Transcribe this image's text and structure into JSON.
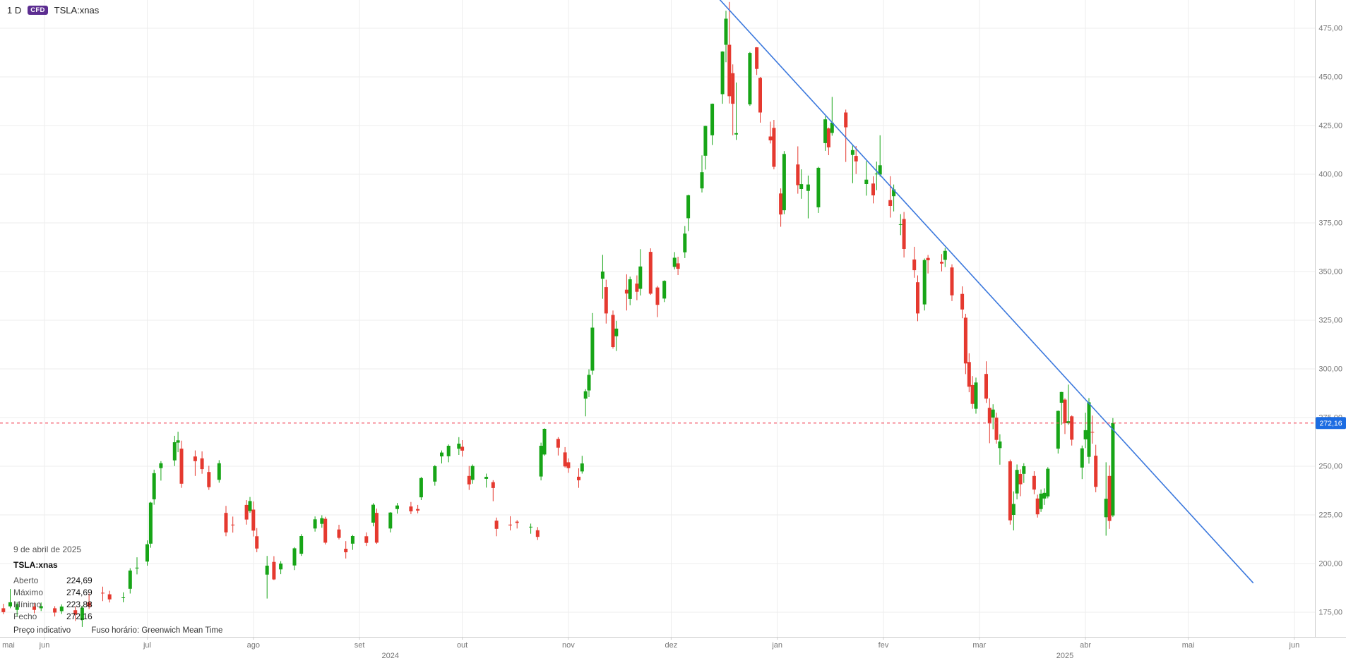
{
  "header": {
    "timeframe": "1 D",
    "instrument_badge": "CFD",
    "symbol": "TSLA:xnas"
  },
  "tooltip": {
    "date": "9 de abril de 2025",
    "symbol": "TSLA:xnas",
    "rows": [
      {
        "label": "Aberto",
        "value": "224,69"
      },
      {
        "label": "Máximo",
        "value": "274,69"
      },
      {
        "label": "Mínimo",
        "value": "223,88"
      },
      {
        "label": "Fecho",
        "value": "272,16"
      }
    ]
  },
  "footer": {
    "price_note": "Preço indicativo",
    "timezone": "Fuso horário: Greenwich Mean Time"
  },
  "colors": {
    "up": "#17a517",
    "down": "#e5392f",
    "trendline": "#3b78dd",
    "current_price_line": "#f4465a",
    "price_tag_bg": "#1c6ce2",
    "price_tag_text": "#ffffff",
    "badge_bg": "#5c2d91",
    "grid": "#ededed",
    "axis_line": "#cfcfcf",
    "axis_text": "#767676"
  },
  "chart_data": {
    "type": "candlestick",
    "symbol": "TSLA:xnas",
    "timeframe": "1 D",
    "y_axis": {
      "ticks": [
        475,
        450,
        425,
        400,
        375,
        350,
        325,
        300,
        275,
        250,
        225,
        200,
        175
      ],
      "top_price": 489.5,
      "bottom_price": 162.3,
      "decimal_separator": ","
    },
    "x_axis": {
      "start": "2024-05-19",
      "end": "2025-06-07",
      "months": [
        {
          "label": "mai",
          "date": "2024-05-01"
        },
        {
          "label": "jun",
          "date": "2024-06-01"
        },
        {
          "label": "jul",
          "date": "2024-07-01"
        },
        {
          "label": "ago",
          "date": "2024-08-01"
        },
        {
          "label": "set",
          "date": "2024-09-01"
        },
        {
          "label": "out",
          "date": "2024-10-01"
        },
        {
          "label": "nov",
          "date": "2024-11-01"
        },
        {
          "label": "dez",
          "date": "2024-12-01"
        },
        {
          "label": "jan",
          "date": "2025-01-01"
        },
        {
          "label": "fev",
          "date": "2025-02-01"
        },
        {
          "label": "mar",
          "date": "2025-03-01"
        },
        {
          "label": "abr",
          "date": "2025-04-01"
        },
        {
          "label": "mai",
          "date": "2025-05-01"
        },
        {
          "label": "jun",
          "date": "2025-06-01"
        }
      ],
      "years": [
        {
          "label": "2024",
          "date": "2024-09-10"
        },
        {
          "label": "2025",
          "date": "2025-03-26"
        }
      ]
    },
    "current_price": {
      "value": 272.16,
      "label": "272,16"
    },
    "trendline": {
      "from": {
        "date": "2024-12-14",
        "price": 492
      },
      "to": {
        "date": "2025-05-20",
        "price": 190
      }
    },
    "candles": [
      [
        "2024-05-20",
        177.0,
        179.3,
        174.0,
        175.0
      ],
      [
        "2024-05-22",
        178.0,
        186.9,
        177.0,
        180.1
      ],
      [
        "2024-05-24",
        176.2,
        180.3,
        172.9,
        179.2
      ],
      [
        "2024-05-29",
        178.0,
        179.6,
        174.4,
        176.2
      ],
      [
        "2024-05-31",
        177.0,
        180.0,
        175.6,
        178.1
      ],
      [
        "2024-06-04",
        177.0,
        178.1,
        172.8,
        174.8
      ],
      [
        "2024-06-06",
        175.5,
        179.0,
        174.1,
        177.9
      ],
      [
        "2024-06-10",
        176.0,
        178.0,
        170.5,
        173.8
      ],
      [
        "2024-06-12",
        171.0,
        178.3,
        167.4,
        177.3
      ],
      [
        "2024-06-14",
        180.0,
        184.6,
        176.6,
        178.0
      ],
      [
        "2024-06-18",
        185.0,
        188.1,
        180.7,
        184.9
      ],
      [
        "2024-06-20",
        184.2,
        186.0,
        180.0,
        181.6
      ],
      [
        "2024-06-24",
        182.5,
        185.2,
        180.1,
        182.6
      ],
      [
        "2024-06-26",
        187.0,
        197.6,
        184.6,
        196.4
      ],
      [
        "2024-06-28",
        197.5,
        203.2,
        194.4,
        197.9
      ],
      [
        "2024-07-01",
        201.0,
        211.9,
        198.9,
        209.9
      ],
      [
        "2024-07-02",
        210.2,
        231.7,
        208.1,
        231.3
      ],
      [
        "2024-07-03",
        233.0,
        248.2,
        230.2,
        246.4
      ],
      [
        "2024-07-05",
        249.0,
        252.6,
        242.6,
        251.5
      ],
      [
        "2024-07-09",
        253.0,
        265.6,
        250.1,
        262.3
      ],
      [
        "2024-07-10",
        262.1,
        267.7,
        257.2,
        263.3
      ],
      [
        "2024-07-11",
        259.0,
        263.1,
        238.9,
        241.0
      ],
      [
        "2024-07-15",
        255.0,
        258.1,
        245.0,
        252.6
      ],
      [
        "2024-07-17",
        254.0,
        257.6,
        246.1,
        248.5
      ],
      [
        "2024-07-19",
        247.0,
        250.2,
        237.8,
        239.2
      ],
      [
        "2024-07-22",
        243.0,
        253.1,
        241.5,
        251.5
      ],
      [
        "2024-07-24",
        226.0,
        229.6,
        214.0,
        216.0
      ],
      [
        "2024-07-26",
        220.0,
        224.1,
        215.9,
        219.8
      ],
      [
        "2024-07-30",
        230.1,
        232.6,
        220.0,
        222.6
      ],
      [
        "2024-07-31",
        227.0,
        234.2,
        226.0,
        232.1
      ],
      [
        "2024-08-01",
        227.7,
        231.9,
        213.9,
        216.9
      ],
      [
        "2024-08-02",
        214.0,
        218.2,
        205.8,
        207.7
      ],
      [
        "2024-08-05",
        194.3,
        203.9,
        182.0,
        198.9
      ],
      [
        "2024-08-07",
        200.8,
        203.8,
        191.5,
        191.8
      ],
      [
        "2024-08-09",
        197.0,
        201.2,
        194.5,
        200.0
      ],
      [
        "2024-08-13",
        199.0,
        208.4,
        196.6,
        207.8
      ],
      [
        "2024-08-15",
        205.0,
        215.1,
        203.9,
        214.1
      ],
      [
        "2024-08-19",
        218.0,
        224.2,
        216.4,
        222.7
      ],
      [
        "2024-08-21",
        220.4,
        224.8,
        218.4,
        223.3
      ],
      [
        "2024-08-22",
        223.0,
        224.0,
        209.8,
        210.7
      ],
      [
        "2024-08-26",
        217.5,
        219.9,
        212.4,
        213.2
      ],
      [
        "2024-08-28",
        207.6,
        211.5,
        202.6,
        205.8
      ],
      [
        "2024-08-30",
        210.2,
        214.7,
        207.0,
        214.1
      ],
      [
        "2024-09-03",
        214.0,
        216.0,
        209.0,
        210.6
      ],
      [
        "2024-09-05",
        221.0,
        231.0,
        219.1,
        230.2
      ],
      [
        "2024-09-06",
        226.0,
        228.2,
        210.1,
        210.7
      ],
      [
        "2024-09-10",
        218.0,
        226.4,
        216.0,
        226.2
      ],
      [
        "2024-09-12",
        228.0,
        231.1,
        225.6,
        229.8
      ],
      [
        "2024-09-16",
        229.3,
        231.6,
        225.4,
        226.8
      ],
      [
        "2024-09-18",
        228.0,
        230.1,
        225.8,
        227.2
      ],
      [
        "2024-09-19",
        234.0,
        244.5,
        232.6,
        243.9
      ],
      [
        "2024-09-23",
        242.1,
        250.6,
        240.0,
        250.0
      ],
      [
        "2024-09-25",
        255.0,
        258.1,
        251.4,
        257.0
      ],
      [
        "2024-09-27",
        255.1,
        261.2,
        252.0,
        260.5
      ],
      [
        "2024-09-30",
        259.0,
        264.9,
        255.8,
        261.6
      ],
      [
        "2024-10-01",
        260.0,
        263.4,
        254.9,
        258.0
      ],
      [
        "2024-10-03",
        245.0,
        250.1,
        237.8,
        240.7
      ],
      [
        "2024-10-04",
        243.0,
        250.9,
        241.0,
        250.1
      ],
      [
        "2024-10-08",
        243.5,
        246.2,
        239.0,
        244.5
      ],
      [
        "2024-10-10",
        241.8,
        242.8,
        232.0,
        238.8
      ],
      [
        "2024-10-11",
        222.0,
        223.6,
        214.0,
        217.8
      ],
      [
        "2024-10-15",
        220.0,
        224.3,
        217.0,
        219.6
      ],
      [
        "2024-10-17",
        221.5,
        222.3,
        218.0,
        220.9
      ],
      [
        "2024-10-21",
        218.9,
        220.5,
        215.3,
        218.9
      ],
      [
        "2024-10-23",
        217.1,
        218.7,
        212.1,
        213.7
      ],
      [
        "2024-10-24",
        244.7,
        262.1,
        242.7,
        260.5
      ],
      [
        "2024-10-25",
        256.0,
        269.5,
        255.3,
        269.2
      ],
      [
        "2024-10-29",
        264.0,
        264.9,
        255.5,
        259.5
      ],
      [
        "2024-10-31",
        257.1,
        259.8,
        249.3,
        249.9
      ],
      [
        "2024-11-01",
        252.0,
        254.0,
        246.6,
        249.0
      ],
      [
        "2024-11-04",
        244.6,
        248.9,
        238.9,
        242.8
      ],
      [
        "2024-11-05",
        247.3,
        255.3,
        246.2,
        251.4
      ],
      [
        "2024-11-06",
        284.7,
        289.6,
        275.6,
        288.5
      ],
      [
        "2024-11-07",
        288.9,
        299.8,
        285.5,
        296.9
      ],
      [
        "2024-11-08",
        299.1,
        328.7,
        297.0,
        321.2
      ],
      [
        "2024-11-11",
        346.3,
        358.6,
        336.0,
        350.0
      ],
      [
        "2024-11-12",
        342.0,
        345.8,
        323.3,
        328.5
      ],
      [
        "2024-11-14",
        327.7,
        330.0,
        310.4,
        311.2
      ],
      [
        "2024-11-15",
        316.8,
        324.7,
        309.2,
        320.7
      ],
      [
        "2024-11-18",
        340.7,
        348.6,
        330.0,
        338.7
      ],
      [
        "2024-11-19",
        335.9,
        347.4,
        332.7,
        346.0
      ],
      [
        "2024-11-21",
        343.8,
        348.0,
        335.3,
        339.6
      ],
      [
        "2024-11-22",
        341.1,
        361.5,
        337.7,
        352.6
      ],
      [
        "2024-11-25",
        360.1,
        361.9,
        338.0,
        338.6
      ],
      [
        "2024-11-27",
        341.8,
        342.6,
        326.6,
        332.9
      ],
      [
        "2024-11-29",
        336.1,
        345.5,
        334.3,
        345.2
      ],
      [
        "2024-12-02",
        352.4,
        360.0,
        351.1,
        357.1
      ],
      [
        "2024-12-03",
        354.2,
        357.6,
        348.2,
        351.4
      ],
      [
        "2024-12-05",
        359.9,
        373.4,
        356.9,
        369.5
      ],
      [
        "2024-12-06",
        377.4,
        389.5,
        370.8,
        389.2
      ],
      [
        "2024-12-10",
        392.7,
        409.7,
        390.6,
        401.0
      ],
      [
        "2024-12-11",
        409.5,
        424.9,
        402.4,
        424.8
      ],
      [
        "2024-12-13",
        420.0,
        436.3,
        415.0,
        436.2
      ],
      [
        "2024-12-16",
        441.1,
        463.2,
        436.2,
        463.0
      ],
      [
        "2024-12-17",
        466.5,
        484.0,
        457.5,
        479.9
      ],
      [
        "2024-12-18",
        466.5,
        488.5,
        436.3,
        440.1
      ],
      [
        "2024-12-19",
        451.9,
        456.4,
        420.0,
        436.2
      ],
      [
        "2024-12-20",
        420.4,
        447.1,
        417.6,
        421.1
      ],
      [
        "2024-12-24",
        435.9,
        462.8,
        435.1,
        462.3
      ],
      [
        "2024-12-26",
        465.2,
        465.3,
        451.0,
        454.1
      ],
      [
        "2024-12-27",
        449.5,
        450.0,
        426.5,
        431.7
      ],
      [
        "2024-12-30",
        419.4,
        427.0,
        415.8,
        417.4
      ],
      [
        "2024-12-31",
        423.8,
        427.9,
        402.5,
        403.8
      ],
      [
        "2025-01-02",
        390.1,
        392.7,
        373.0,
        379.3
      ],
      [
        "2025-01-03",
        381.5,
        411.9,
        379.5,
        410.4
      ],
      [
        "2025-01-07",
        405.0,
        414.3,
        390.0,
        394.4
      ],
      [
        "2025-01-08",
        392.4,
        402.5,
        387.4,
        394.9
      ],
      [
        "2025-01-10",
        391.4,
        399.3,
        377.3,
        394.7
      ],
      [
        "2025-01-13",
        383.0,
        403.8,
        380.1,
        403.3
      ],
      [
        "2025-01-15",
        416.0,
        429.7,
        412.0,
        428.2
      ],
      [
        "2025-01-16",
        423.5,
        424.0,
        409.8,
        413.8
      ],
      [
        "2025-01-17",
        421.2,
        439.7,
        419.8,
        426.5
      ],
      [
        "2025-01-21",
        431.7,
        433.2,
        406.3,
        424.1
      ],
      [
        "2025-01-23",
        409.9,
        415.3,
        395.4,
        412.4
      ],
      [
        "2025-01-24",
        409.4,
        414.5,
        400.1,
        406.6
      ],
      [
        "2025-01-27",
        394.9,
        406.7,
        389.0,
        397.2
      ],
      [
        "2025-01-29",
        395.2,
        398.9,
        385.0,
        389.1
      ],
      [
        "2025-01-30",
        400.0,
        406.5,
        391.8,
        400.3
      ],
      [
        "2025-01-31",
        399.8,
        420.0,
        398.8,
        404.6
      ],
      [
        "2025-02-03",
        386.7,
        399.0,
        377.7,
        383.7
      ],
      [
        "2025-02-04",
        388.7,
        394.7,
        380.9,
        392.2
      ],
      [
        "2025-02-06",
        374.3,
        379.5,
        368.7,
        374.3
      ],
      [
        "2025-02-07",
        377.0,
        380.6,
        357.2,
        361.6
      ],
      [
        "2025-02-10",
        356.2,
        362.7,
        346.8,
        350.7
      ],
      [
        "2025-02-11",
        344.5,
        348.0,
        324.5,
        328.5
      ],
      [
        "2025-02-13",
        333.1,
        356.7,
        330.0,
        355.9
      ],
      [
        "2025-02-14",
        357.0,
        358.5,
        349.0,
        355.8
      ],
      [
        "2025-02-18",
        355.0,
        359.0,
        350.1,
        354.1
      ],
      [
        "2025-02-19",
        356.0,
        362.1,
        352.3,
        360.6
      ],
      [
        "2025-02-21",
        352.1,
        353.7,
        334.8,
        337.8
      ],
      [
        "2025-02-24",
        338.5,
        342.4,
        326.0,
        330.5
      ],
      [
        "2025-02-25",
        326.3,
        328.3,
        297.3,
        302.8
      ],
      [
        "2025-02-26",
        303.5,
        308.0,
        288.0,
        290.8
      ],
      [
        "2025-02-27",
        291.7,
        296.3,
        279.5,
        282.0
      ],
      [
        "2025-02-28",
        279.5,
        295.5,
        277.0,
        293.0
      ],
      [
        "2025-03-03",
        297.4,
        303.9,
        282.5,
        284.7
      ],
      [
        "2025-03-04",
        280.0,
        284.9,
        261.8,
        272.0
      ],
      [
        "2025-03-05",
        275.0,
        281.8,
        269.0,
        279.1
      ],
      [
        "2025-03-06",
        274.9,
        277.5,
        261.6,
        263.5
      ],
      [
        "2025-03-07",
        259.3,
        266.4,
        250.8,
        262.7
      ],
      [
        "2025-03-10",
        252.5,
        253.4,
        220.0,
        222.2
      ],
      [
        "2025-03-11",
        225.0,
        237.1,
        217.0,
        230.6
      ],
      [
        "2025-03-12",
        236.0,
        250.9,
        233.0,
        248.1
      ],
      [
        "2025-03-13",
        246.0,
        248.4,
        234.6,
        240.7
      ],
      [
        "2025-03-14",
        246.1,
        251.5,
        241.4,
        250.0
      ],
      [
        "2025-03-17",
        245.0,
        247.4,
        235.6,
        238.0
      ],
      [
        "2025-03-18",
        233.4,
        235.4,
        223.6,
        225.3
      ],
      [
        "2025-03-19",
        228.0,
        238.0,
        226.5,
        235.9
      ],
      [
        "2025-03-20",
        233.4,
        238.6,
        230.1,
        236.3
      ],
      [
        "2025-03-21",
        234.5,
        249.5,
        233.5,
        248.7
      ],
      [
        "2025-03-24",
        259.0,
        278.6,
        256.5,
        278.4
      ],
      [
        "2025-03-25",
        282.6,
        288.2,
        271.3,
        288.1
      ],
      [
        "2025-03-26",
        284.2,
        284.9,
        266.5,
        272.1
      ],
      [
        "2025-03-27",
        272.0,
        291.9,
        271.3,
        273.1
      ],
      [
        "2025-03-28",
        275.6,
        276.1,
        260.6,
        263.6
      ],
      [
        "2025-03-31",
        249.3,
        260.6,
        243.4,
        259.2
      ],
      [
        "2025-04-01",
        263.8,
        277.5,
        259.3,
        268.5
      ],
      [
        "2025-04-02",
        254.8,
        285.0,
        251.3,
        282.8
      ],
      [
        "2025-04-03",
        267.6,
        276.0,
        261.6,
        267.3
      ],
      [
        "2025-04-04",
        255.4,
        261.0,
        236.6,
        239.4
      ],
      [
        "2025-04-07",
        223.8,
        252.0,
        214.3,
        233.3
      ],
      [
        "2025-04-08",
        245.0,
        250.4,
        217.8,
        221.9
      ],
      [
        "2025-04-09",
        224.69,
        274.69,
        223.88,
        272.16
      ]
    ]
  }
}
